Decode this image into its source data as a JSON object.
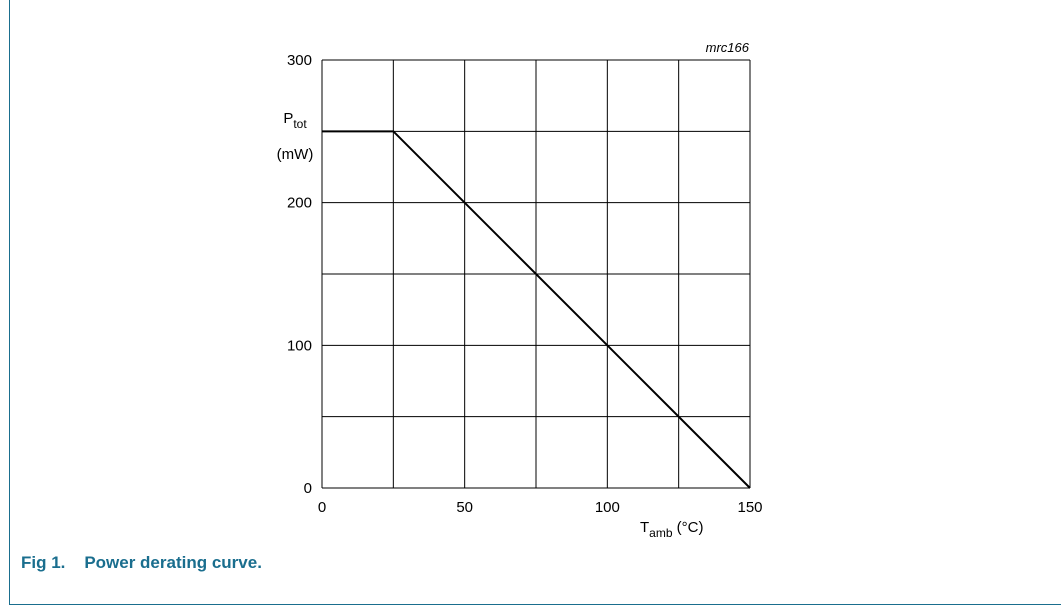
{
  "chart_data": {
    "type": "line",
    "code": "mrc166",
    "xlabel": {
      "main": "T",
      "sub": "amb",
      "unit": " (°C)"
    },
    "ylabel": {
      "main": "P",
      "sub": "tot",
      "unit": "(mW)"
    },
    "xlim": [
      0,
      150
    ],
    "ylim": [
      0,
      300
    ],
    "x_tick_labels": [
      "0",
      "50",
      "100",
      "150"
    ],
    "y_tick_labels": [
      "0",
      "100",
      "200",
      "300"
    ],
    "grid": true,
    "series": [
      {
        "x": [
          0,
          25,
          150
        ],
        "y": [
          250,
          250,
          0
        ]
      }
    ]
  },
  "caption": {
    "label": "Fig 1.",
    "text": "Power derating curve."
  }
}
